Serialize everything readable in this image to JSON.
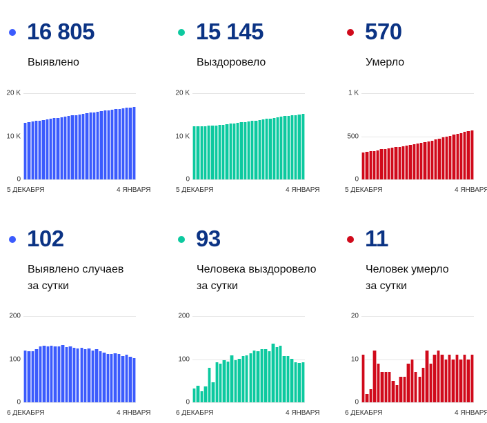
{
  "colors": {
    "confirmed": "#3b5bfd",
    "recovered": "#0cc99f",
    "deaths": "#d00a1b"
  },
  "panels": [
    {
      "id": "confirmed-total",
      "value": "16 805",
      "label": [
        "Выявлено"
      ],
      "color": "#3b5bfd"
    },
    {
      "id": "recovered-total",
      "value": "15 145",
      "label": [
        "Выздоровело"
      ],
      "color": "#0cc99f"
    },
    {
      "id": "deaths-total",
      "value": "570",
      "label": [
        "Умерло"
      ],
      "color": "#d00a1b"
    },
    {
      "id": "confirmed-daily",
      "value": "102",
      "label": [
        "Выявлено случаев",
        "за сутки"
      ],
      "color": "#3b5bfd"
    },
    {
      "id": "recovered-daily",
      "value": "93",
      "label": [
        "Человека выздоровело",
        "за сутки"
      ],
      "color": "#0cc99f"
    },
    {
      "id": "deaths-daily",
      "value": "11",
      "label": [
        "Человек умерло",
        "за сутки"
      ],
      "color": "#d00a1b"
    }
  ],
  "chart_data": [
    {
      "type": "bar",
      "title": "Выявлено",
      "ylim": [
        0,
        20000
      ],
      "yticks": [
        "0",
        "10 K",
        "20 K"
      ],
      "ytick_values": [
        0,
        10000,
        20000
      ],
      "x_start": "5 ДЕКАБРЯ",
      "x_end": "4 ЯНВАРЯ",
      "values": [
        13175,
        13295,
        13413,
        13531,
        13654,
        13784,
        13916,
        14046,
        14177,
        14306,
        14436,
        14569,
        14697,
        14827,
        14954,
        15079,
        15206,
        15329,
        15454,
        15574,
        15697,
        15815,
        15931,
        16043,
        16155,
        16269,
        16381,
        16488,
        16598,
        16703,
        16805
      ]
    },
    {
      "type": "bar",
      "title": "Выздоровело",
      "ylim": [
        0,
        20000
      ],
      "yticks": [
        "0",
        "10 K",
        "20 K"
      ],
      "ytick_values": [
        0,
        10000,
        20000
      ],
      "x_start": "5 ДЕКАБРЯ",
      "x_end": "4 ЯНВАРЯ",
      "values": [
        12279,
        12311,
        12350,
        12375,
        12412,
        12492,
        12538,
        12631,
        12721,
        12819,
        12914,
        13023,
        13121,
        13222,
        13329,
        13438,
        13552,
        13672,
        13790,
        13914,
        14038,
        14156,
        14292,
        14420,
        14551,
        14658,
        14766,
        14867,
        14960,
        15052,
        15145
      ]
    },
    {
      "type": "bar",
      "title": "Умерло",
      "ylim": [
        0,
        1000
      ],
      "yticks": [
        "0",
        "500",
        "1 K"
      ],
      "ytick_values": [
        0,
        500,
        1000
      ],
      "x_start": "5 ДЕКАБРЯ",
      "x_end": "4 ЯНВАРЯ",
      "values": [
        312,
        323,
        325,
        328,
        340,
        349,
        356,
        363,
        370,
        375,
        379,
        385,
        391,
        400,
        410,
        417,
        423,
        431,
        443,
        452,
        463,
        475,
        486,
        496,
        507,
        517,
        528,
        538,
        549,
        559,
        570
      ]
    },
    {
      "type": "bar",
      "title": "Выявлено случаев за сутки",
      "ylim": [
        0,
        200
      ],
      "yticks": [
        "0",
        "100",
        "200"
      ],
      "ytick_values": [
        0,
        100,
        200
      ],
      "x_start": "6 ДЕКАБРЯ",
      "x_end": "4 ЯНВАРЯ",
      "values": [
        120,
        118,
        118,
        123,
        130,
        132,
        130,
        131,
        129,
        130,
        133,
        128,
        130,
        127,
        125,
        127,
        123,
        125,
        120,
        123,
        118,
        116,
        112,
        112,
        114,
        112,
        107,
        110,
        105,
        102
      ]
    },
    {
      "type": "bar",
      "title": "Человека выздоровело за сутки",
      "ylim": [
        0,
        200
      ],
      "yticks": [
        "0",
        "100",
        "200"
      ],
      "ytick_values": [
        0,
        100,
        200
      ],
      "x_start": "6 ДЕКАБРЯ",
      "x_end": "4 ЯНВАРЯ",
      "values": [
        32,
        39,
        25,
        37,
        80,
        46,
        93,
        90,
        98,
        95,
        109,
        98,
        101,
        107,
        109,
        114,
        120,
        118,
        124,
        124,
        118,
        136,
        128,
        131,
        107,
        108,
        101,
        93,
        92,
        93
      ]
    },
    {
      "type": "bar",
      "title": "Человек умерло за сутки",
      "ylim": [
        0,
        20
      ],
      "yticks": [
        "0",
        "10",
        "20"
      ],
      "ytick_values": [
        0,
        10,
        20
      ],
      "x_start": "6 ДЕКАБРЯ",
      "x_end": "4 ЯНВАРЯ",
      "values": [
        11,
        2,
        3,
        12,
        9,
        7,
        7,
        7,
        5,
        4,
        6,
        6,
        9,
        10,
        7,
        6,
        8,
        12,
        9,
        11,
        12,
        11,
        10,
        11,
        10,
        11,
        10,
        11,
        10,
        11
      ]
    }
  ]
}
